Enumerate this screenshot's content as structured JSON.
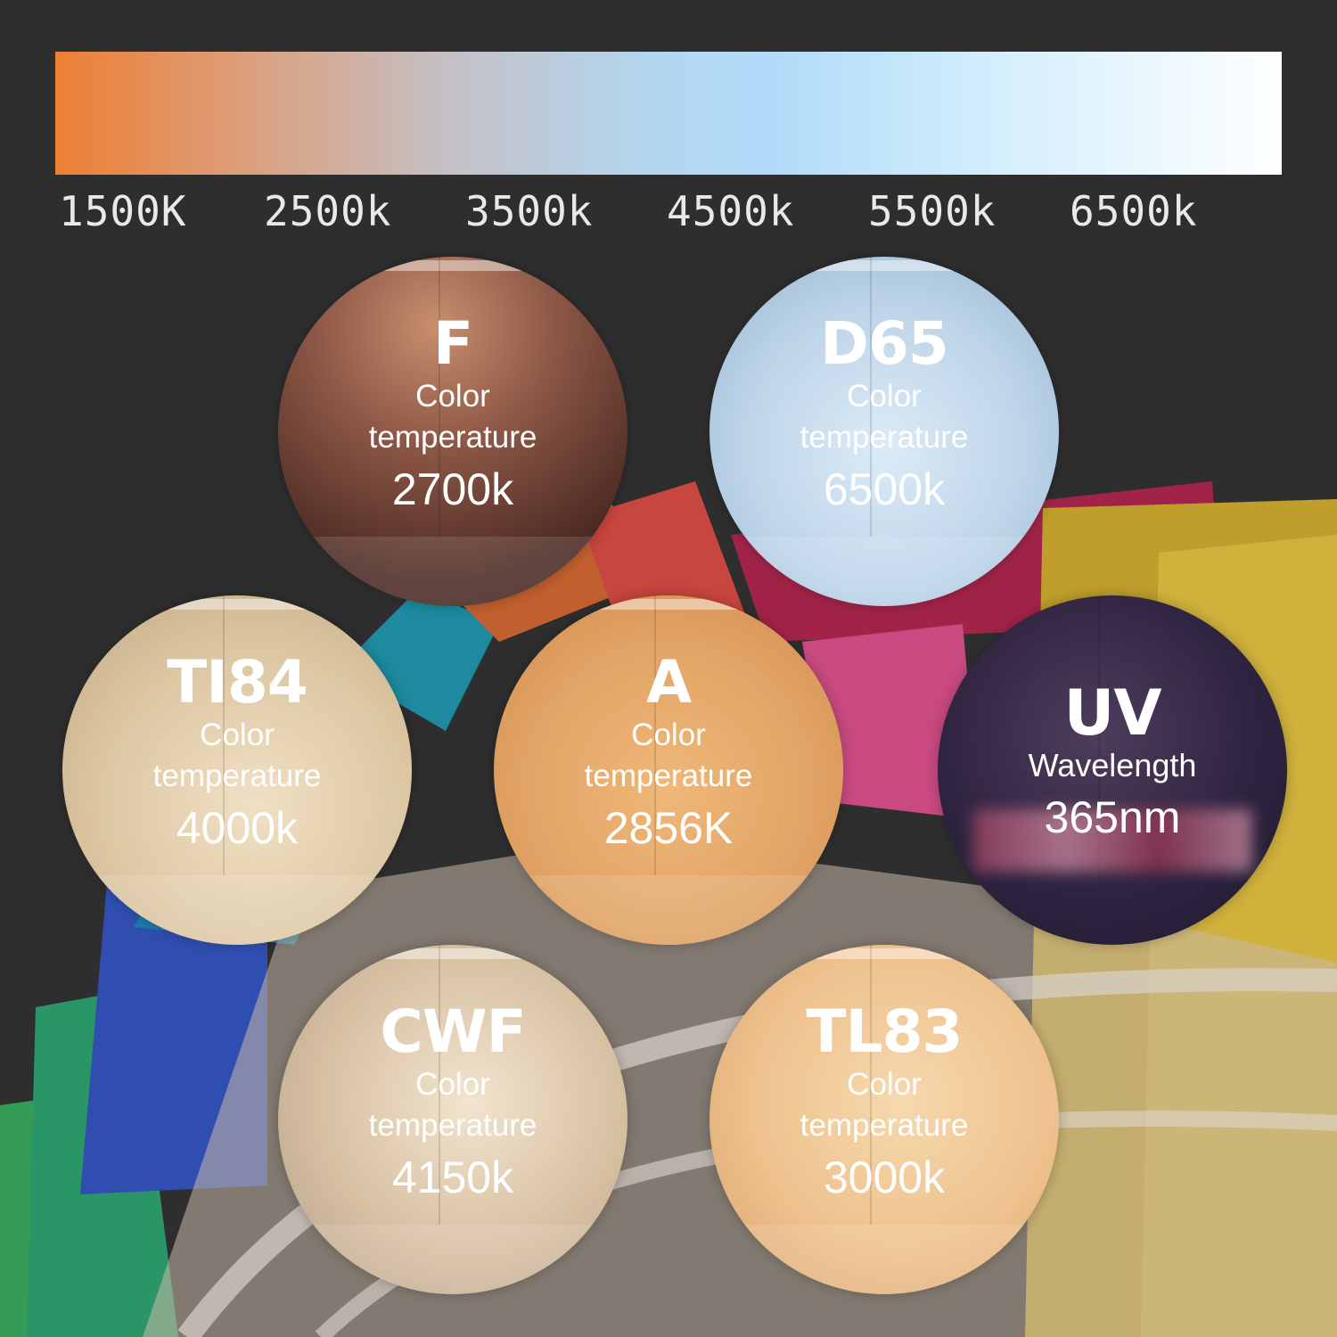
{
  "scale": {
    "labels": [
      "1500K",
      "2500k",
      "3500k",
      "4500k",
      "5500k",
      "6500k"
    ],
    "gradient_colors": [
      "#ee7f33",
      "#c4c0c6",
      "#b0daf8",
      "#ffffff"
    ]
  },
  "light_sources": [
    {
      "code": "F",
      "label_line1": "Color",
      "label_line2": "temperature",
      "value": "2700k",
      "tint": "#6e3f32"
    },
    {
      "code": "D65",
      "label_line1": "Color",
      "label_line2": "temperature",
      "value": "6500k",
      "tint": "#bdd4e8"
    },
    {
      "code": "TI84",
      "label_line1": "Color",
      "label_line2": "temperature",
      "value": "4000k",
      "tint": "#dcc6a2"
    },
    {
      "code": "A",
      "label_line1": "Color",
      "label_line2": "temperature",
      "value": "2856K",
      "tint": "#e2a466"
    },
    {
      "code": "UV",
      "label_line1": "Wavelength",
      "label_line2": "",
      "value": "365nm",
      "tint": "#2f2440"
    },
    {
      "code": "CWF",
      "label_line1": "Color",
      "label_line2": "temperature",
      "value": "4150k",
      "tint": "#d7c0a2"
    },
    {
      "code": "TL83",
      "label_line1": "Color",
      "label_line2": "temperature",
      "value": "3000k",
      "tint": "#eec18d"
    }
  ],
  "swatch_fan_colors": [
    "#2a9b6a",
    "#3f57b0",
    "#1d8fa6",
    "#c9622f",
    "#d0483f",
    "#a8244a",
    "#d24b86",
    "#c7a52c",
    "#d9b93d"
  ]
}
